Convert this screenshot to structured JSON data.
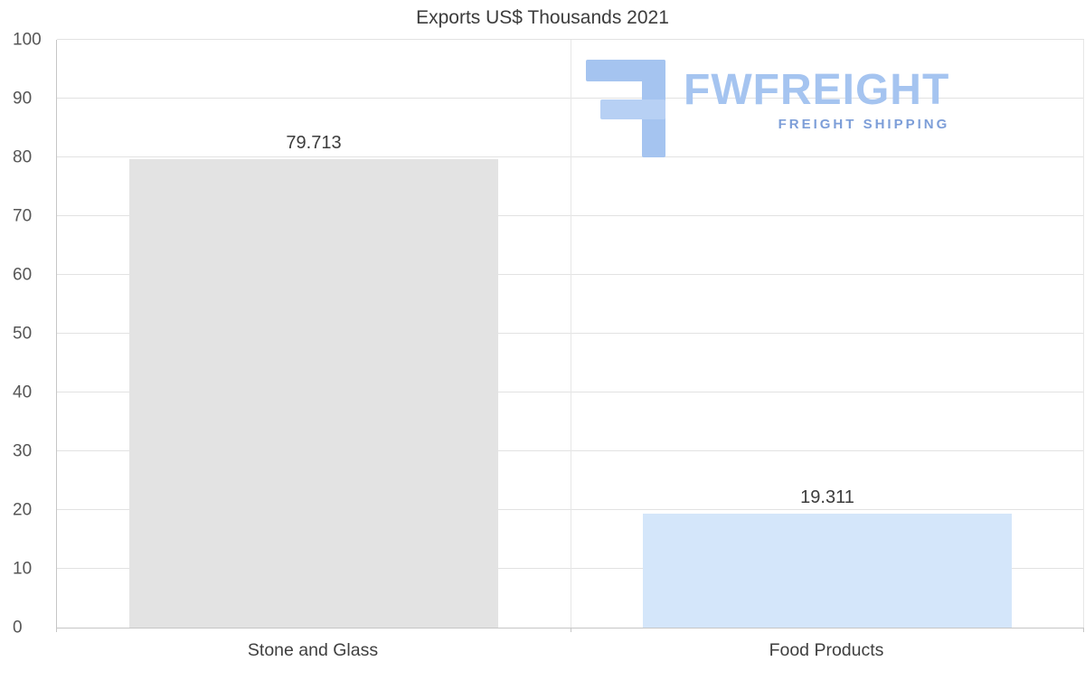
{
  "chart_data": {
    "type": "bar",
    "title": "Exports US$ Thousands 2021",
    "categories": [
      "Stone and Glass",
      "Food Products"
    ],
    "values": [
      79.713,
      19.311
    ],
    "value_labels": [
      "79.713",
      "19.311"
    ],
    "bar_colors": [
      "#e3e3e3",
      "#d4e6fa"
    ],
    "xlabel": "",
    "ylabel": "",
    "ylim": [
      0,
      100
    ],
    "yticks": [
      0,
      10,
      20,
      30,
      40,
      50,
      60,
      70,
      80,
      90,
      100
    ],
    "grid": true,
    "legend": false
  },
  "watermark": {
    "brand": "FWFREIGHT",
    "tagline": "FREIGHT SHIPPING",
    "icon": "fwfreight-logo-icon",
    "brand_color": "#a5c4f0",
    "tagline_color": "#7d9ed8"
  }
}
